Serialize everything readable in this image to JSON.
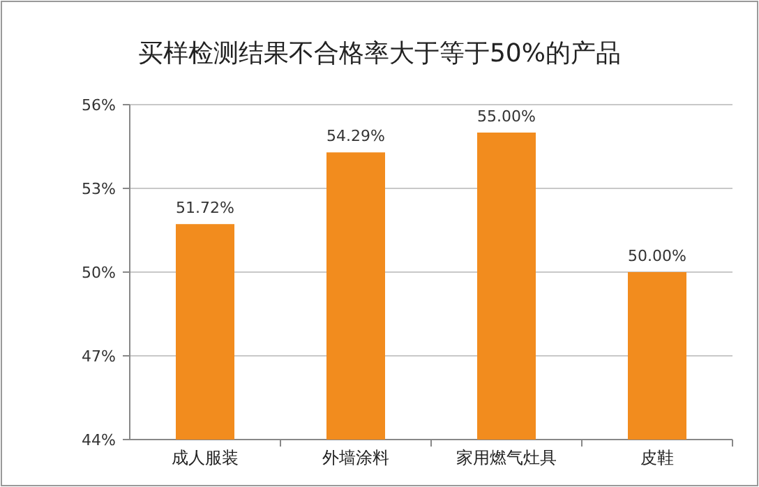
{
  "chart_data": {
    "type": "bar",
    "title": "买样检测结果不合格率大于等于50%的产品",
    "categories": [
      "成人服装",
      "外墙涂料",
      "家用燃气灶具",
      "皮鞋"
    ],
    "values": [
      51.72,
      54.29,
      55.0,
      50.0
    ],
    "value_labels": [
      "51.72%",
      "54.29%",
      "55.00%",
      "50.00%"
    ],
    "color": "#f28c1e",
    "ylim": [
      44,
      56
    ],
    "yticks": [
      {
        "value": 44,
        "label": "44%"
      },
      {
        "value": 47,
        "label": "47%"
      },
      {
        "value": 50,
        "label": "50%"
      },
      {
        "value": 53,
        "label": "53%"
      },
      {
        "value": 56,
        "label": "56%"
      }
    ],
    "grid": "y"
  }
}
